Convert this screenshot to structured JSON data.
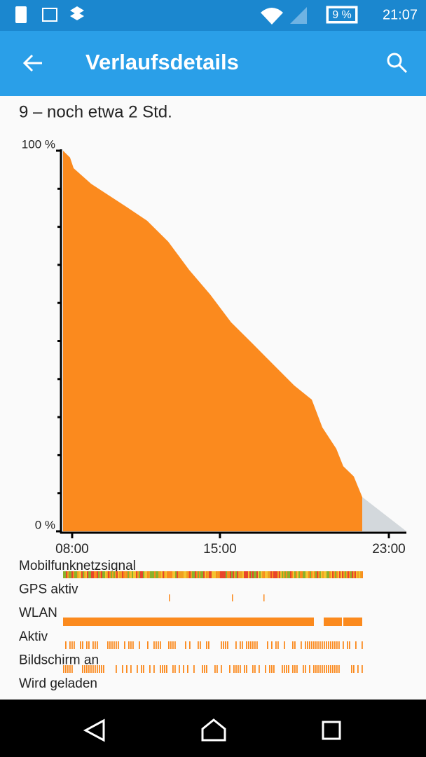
{
  "status_bar": {
    "battery": "9 %",
    "time": "21:07"
  },
  "app_bar": {
    "title": "Verlaufsdetails"
  },
  "summary": "9 – noch etwa 2 Std.",
  "chart_data": {
    "type": "area",
    "xlim": [
      7.57,
      23.83
    ],
    "ylim": [
      0,
      100
    ],
    "xticks": [
      {
        "value": 8,
        "label": "08:00"
      },
      {
        "value": 15,
        "label": "15:00"
      },
      {
        "value": 23,
        "label": "23:00"
      }
    ],
    "yticks": [
      {
        "value": 0,
        "label": "0 %"
      },
      {
        "value": 100,
        "label": "100 %"
      }
    ],
    "series": [
      {
        "color": "#fb8a1e",
        "x": [
          7.57,
          7.9,
          8.07,
          8.9,
          9.56,
          10.56,
          11.55,
          12.55,
          13.54,
          14.54,
          15.53,
          16.53,
          17.53,
          18.52,
          19.35,
          19.85,
          20.51,
          20.84,
          21.34,
          21.74
        ],
        "values": [
          100,
          98.2,
          95.4,
          91.3,
          88.9,
          85.3,
          81.6,
          76.1,
          68.7,
          62.2,
          54.9,
          49.4,
          43.8,
          38.3,
          34.6,
          27.3,
          21.7,
          17.1,
          14.4,
          9
        ]
      },
      {
        "color": "#d3d8dc",
        "x": [
          21.74,
          23.83
        ],
        "values": [
          9,
          0
        ]
      }
    ]
  },
  "rows": [
    "Mobilfunknetzsignal",
    "GPS aktiv",
    "WLAN",
    "Aktiv",
    "Bildschirm an",
    "Wird geladen"
  ]
}
